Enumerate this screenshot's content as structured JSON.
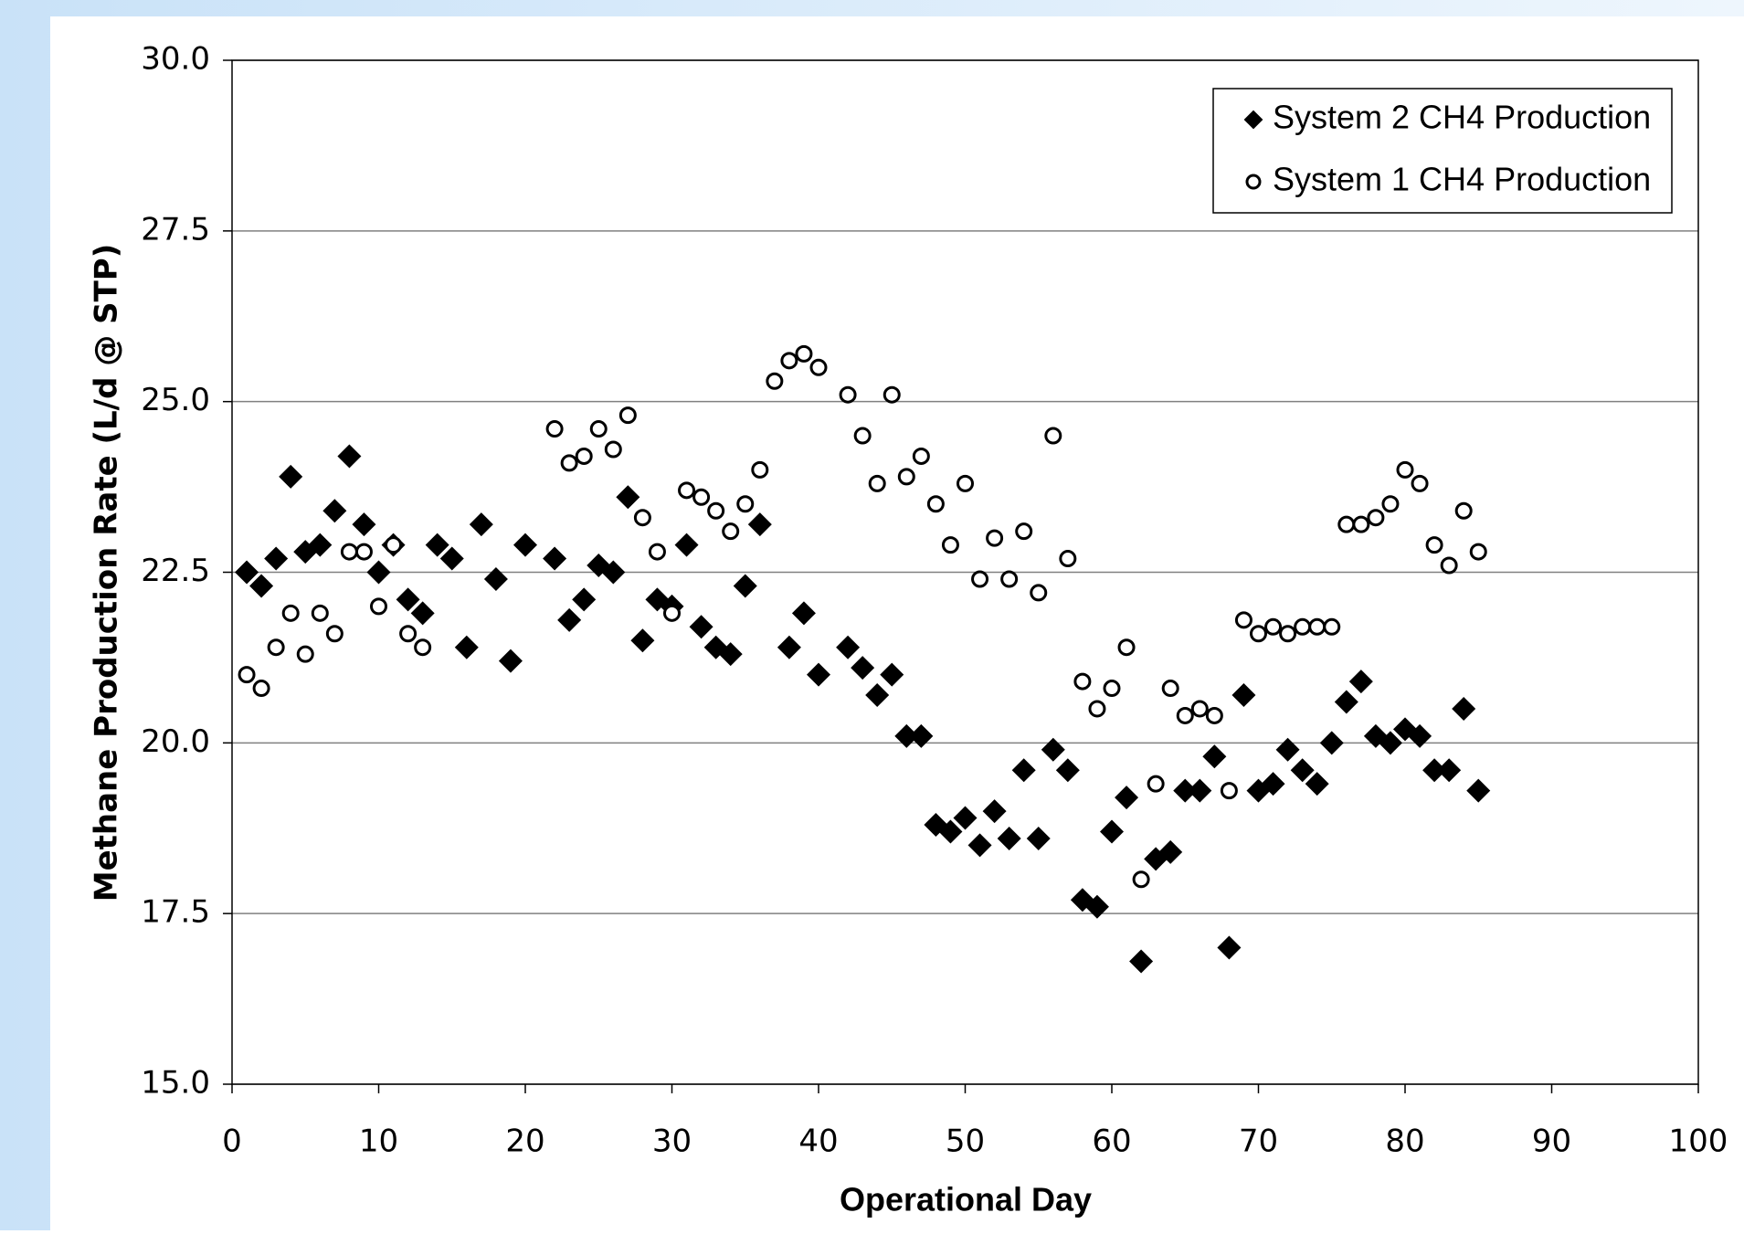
{
  "chart_data": {
    "type": "scatter",
    "xlabel": "Operational Day",
    "ylabel": "Methane Production Rate (L/d @ STP)",
    "xlim": [
      0,
      100
    ],
    "xticks": [
      0,
      10,
      20,
      30,
      40,
      50,
      60,
      70,
      80,
      90,
      100
    ],
    "ylim": [
      15,
      30
    ],
    "yticks": [
      {
        "value": 15,
        "label": "15.0"
      },
      {
        "value": 17.5,
        "label": "17.5"
      },
      {
        "value": 20,
        "label": "20.0"
      },
      {
        "value": 22.5,
        "label": "22.5"
      },
      {
        "value": 25,
        "label": "25.0"
      },
      {
        "value": 27.5,
        "label": "27.5"
      },
      {
        "value": 30,
        "label": "30.0"
      }
    ],
    "grid": true,
    "legend": "top-right",
    "series": [
      {
        "name": "System 2 CH4 Production",
        "color": "#000000",
        "marker": "diamond",
        "x": [
          1,
          2,
          3,
          4,
          5,
          6,
          7,
          8,
          9,
          10,
          11,
          12,
          13,
          14,
          15,
          16,
          17,
          18,
          19,
          20,
          22,
          23,
          24,
          25,
          26,
          27,
          28,
          29,
          30,
          31,
          32,
          33,
          34,
          35,
          36,
          38,
          39,
          40,
          42,
          43,
          44,
          45,
          46,
          47,
          48,
          49,
          50,
          51,
          52,
          53,
          54,
          55,
          56,
          57,
          58,
          59,
          60,
          61,
          62,
          63,
          64,
          65,
          66,
          67,
          68,
          69,
          70,
          71,
          72,
          73,
          74,
          75,
          76,
          77,
          78,
          79,
          80,
          81,
          82,
          83,
          84,
          85
        ],
        "values": [
          22.5,
          22.3,
          22.7,
          23.9,
          22.8,
          22.9,
          23.4,
          24.2,
          23.2,
          22.5,
          22.9,
          22.1,
          21.9,
          22.9,
          22.7,
          21.4,
          23.2,
          22.4,
          21.2,
          22.9,
          22.7,
          21.8,
          22.1,
          22.6,
          22.5,
          23.6,
          21.5,
          22.1,
          22.0,
          22.9,
          21.7,
          21.4,
          21.3,
          22.3,
          23.2,
          21.4,
          21.9,
          21.0,
          21.4,
          21.1,
          20.7,
          21.0,
          20.1,
          20.1,
          18.8,
          18.7,
          18.9,
          18.5,
          19.0,
          18.6,
          19.6,
          18.6,
          19.9,
          19.6,
          17.7,
          17.6,
          18.7,
          19.2,
          16.8,
          18.3,
          18.4,
          19.3,
          19.3,
          19.8,
          17.0,
          20.7,
          19.3,
          19.4,
          19.9,
          19.6,
          19.4,
          20.0,
          20.6,
          20.9,
          20.1,
          20.0,
          20.2,
          20.1,
          19.6,
          19.6,
          20.5,
          19.3
        ]
      },
      {
        "name": "System 1 CH4 Production",
        "color": "#000000",
        "marker": "circle",
        "x": [
          1,
          2,
          3,
          4,
          5,
          6,
          7,
          8,
          9,
          10,
          11,
          12,
          13,
          22,
          23,
          24,
          25,
          26,
          27,
          28,
          29,
          30,
          31,
          32,
          33,
          34,
          35,
          36,
          37,
          38,
          39,
          40,
          42,
          43,
          44,
          45,
          46,
          47,
          48,
          49,
          50,
          51,
          52,
          53,
          54,
          55,
          56,
          57,
          58,
          59,
          60,
          61,
          62,
          63,
          64,
          65,
          66,
          67,
          68,
          69,
          70,
          71,
          72,
          73,
          74,
          75,
          76,
          77,
          78,
          79,
          80,
          81,
          82,
          83,
          84,
          85
        ],
        "values": [
          21.0,
          20.8,
          21.4,
          21.9,
          21.3,
          21.9,
          21.6,
          22.8,
          22.8,
          22.0,
          22.9,
          21.6,
          21.4,
          24.6,
          24.1,
          24.2,
          24.6,
          24.3,
          24.8,
          23.3,
          22.8,
          21.9,
          23.7,
          23.6,
          23.4,
          23.1,
          23.5,
          24.0,
          25.3,
          25.6,
          25.7,
          25.5,
          25.1,
          24.5,
          23.8,
          25.1,
          23.9,
          24.2,
          23.5,
          22.9,
          23.8,
          22.4,
          23.0,
          22.4,
          23.1,
          22.2,
          24.5,
          22.7,
          20.9,
          20.5,
          20.8,
          21.4,
          18.0,
          19.4,
          20.8,
          20.4,
          20.5,
          20.4,
          19.3,
          21.8,
          21.6,
          21.7,
          21.6,
          21.7,
          21.7,
          21.7,
          23.2,
          23.2,
          23.3,
          23.5,
          24.0,
          23.8,
          22.9,
          22.6,
          23.4,
          22.8
        ]
      }
    ]
  }
}
